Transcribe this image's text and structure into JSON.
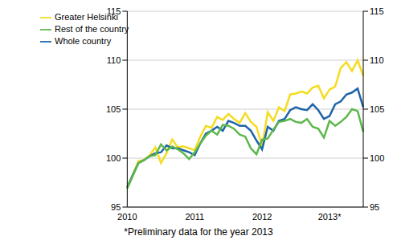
{
  "chart_data": {
    "type": "line",
    "categories": [
      "2010",
      null,
      null,
      null,
      null,
      null,
      null,
      null,
      null,
      null,
      null,
      null,
      "2011",
      null,
      null,
      null,
      null,
      null,
      null,
      null,
      null,
      null,
      null,
      null,
      "2012",
      null,
      null,
      null,
      null,
      null,
      null,
      null,
      null,
      null,
      null,
      null,
      "2013*",
      null,
      null,
      null,
      null,
      null,
      null
    ],
    "series": [
      {
        "name": "Greater Helsinki",
        "color": "#f5dc1e",
        "values": [
          97.0,
          98.3,
          99.7,
          99.8,
          100.3,
          101.1,
          99.5,
          100.5,
          101.9,
          101.1,
          101.2,
          101.0,
          100.8,
          102.2,
          103.3,
          103.1,
          104.2,
          103.9,
          104.5,
          104.0,
          103.6,
          104.6,
          103.7,
          103.2,
          101.2,
          104.7,
          103.8,
          105.2,
          104.8,
          106.5,
          106.6,
          106.8,
          106.6,
          107.2,
          107.4,
          106.1,
          107.0,
          107.3,
          109.2,
          109.8,
          108.9,
          110.0,
          108.4
        ]
      },
      {
        "name": "Whole country",
        "color": "#1f64a8",
        "values": [
          97.0,
          98.3,
          99.5,
          99.8,
          100.2,
          100.5,
          100.6,
          101.3,
          101.0,
          101.0,
          100.8,
          100.6,
          100.3,
          101.5,
          102.5,
          102.8,
          103.2,
          102.8,
          103.8,
          103.6,
          103.3,
          103.3,
          102.8,
          101.8,
          100.9,
          103.2,
          102.8,
          103.8,
          104.0,
          104.9,
          105.2,
          105.0,
          104.9,
          105.5,
          104.9,
          104.0,
          104.3,
          105.5,
          105.8,
          106.5,
          106.7,
          107.1,
          105.2
        ]
      },
      {
        "name": "Rest of the country",
        "color": "#5cb84a",
        "values": [
          96.9,
          98.2,
          99.5,
          99.8,
          100.2,
          100.3,
          101.4,
          100.8,
          101.2,
          100.9,
          100.5,
          99.9,
          100.6,
          101.5,
          102.3,
          102.8,
          102.4,
          103.4,
          103.3,
          103.0,
          102.4,
          102.2,
          101.0,
          100.4,
          101.9,
          102.0,
          102.9,
          103.7,
          103.8,
          104.0,
          103.7,
          103.6,
          104.0,
          103.2,
          103.0,
          102.1,
          103.8,
          103.3,
          103.7,
          104.2,
          105.0,
          104.8,
          102.7
        ]
      }
    ],
    "ylim": [
      95,
      115
    ],
    "yticks": [
      95,
      100,
      105,
      110,
      115
    ],
    "y2lim": [
      95,
      115
    ],
    "y2ticks": [
      95,
      100,
      105,
      110,
      115
    ],
    "grid": true,
    "legend": "top left",
    "annotations": [
      "*Preliminary data for the year 2013"
    ]
  }
}
